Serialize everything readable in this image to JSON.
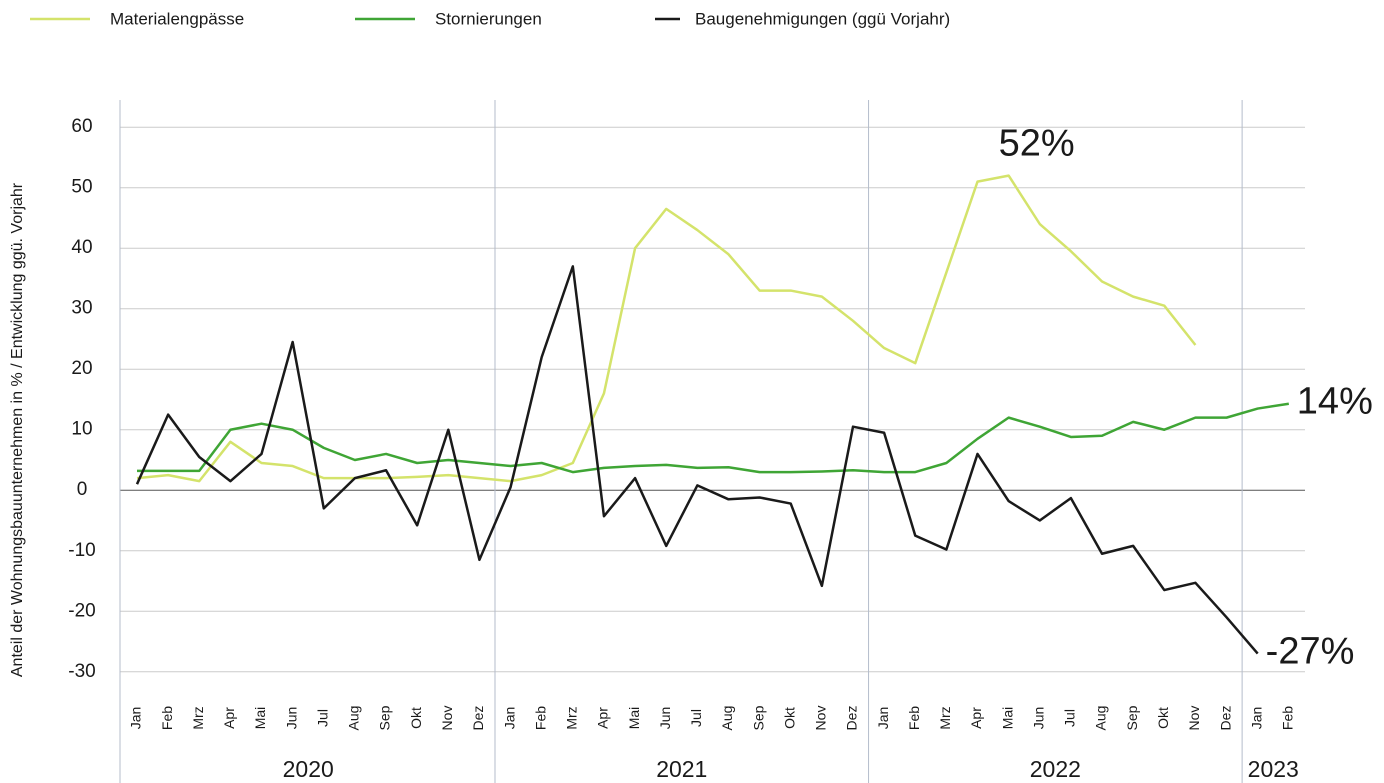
{
  "chart_data": {
    "type": "line",
    "y_label": "Anteil der Wohnungsbauunternehmen in % / Entwicklung ggü. Vorjahr",
    "categories": [
      "Jan",
      "Feb",
      "Mrz",
      "Apr",
      "Mai",
      "Jun",
      "Jul",
      "Aug",
      "Sep",
      "Okt",
      "Nov",
      "Dez",
      "Jan",
      "Feb",
      "Mrz",
      "Apr",
      "Mai",
      "Jun",
      "Jul",
      "Aug",
      "Sep",
      "Okt",
      "Nov",
      "Dez",
      "Jan",
      "Feb",
      "Mrz",
      "Apr",
      "Mai",
      "Jun",
      "Jul",
      "Aug",
      "Sep",
      "Okt",
      "Nov",
      "Dez",
      "Jan",
      "Feb"
    ],
    "years": [
      "2020",
      "2021",
      "2022",
      "2023"
    ],
    "series": [
      {
        "name": "Materialengpässe",
        "color": "#d4e36b",
        "values": [
          2,
          2.5,
          1.5,
          8,
          4.5,
          4,
          2,
          2,
          2,
          2.2,
          2.5,
          2,
          1.5,
          2.5,
          4.5,
          16,
          40,
          46.5,
          43,
          39,
          33,
          33,
          32,
          28,
          23.5,
          21,
          36,
          51,
          52,
          44,
          39.5,
          34.5,
          32,
          30.5,
          24,
          null,
          null,
          null
        ]
      },
      {
        "name": "Stornierungen",
        "color": "#3fa535",
        "values": [
          3.2,
          3.2,
          3.2,
          10,
          11,
          10,
          7,
          5,
          6,
          4.5,
          5,
          4.5,
          4,
          4.5,
          3,
          3.7,
          4,
          4.2,
          3.7,
          3.8,
          3,
          3,
          3.1,
          3.3,
          3,
          3,
          4.5,
          8.5,
          12,
          10.5,
          8.8,
          9,
          11.3,
          10,
          12,
          12,
          13.5,
          14.3
        ]
      },
      {
        "name": "Baugenehmigungen (ggü Vorjahr)",
        "color": "#1a1a1a",
        "values": [
          1,
          12.5,
          5.5,
          1.5,
          6,
          24.5,
          -3,
          2,
          3.3,
          -5.8,
          10,
          -11.5,
          0.5,
          22,
          37,
          -4.3,
          2,
          -9.2,
          0.8,
          -1.5,
          -1.2,
          -2.2,
          -15.8,
          10.5,
          9.5,
          -7.5,
          -9.8,
          6,
          -1.8,
          -5,
          -1.3,
          -10.5,
          -9.2,
          -16.5,
          -15.3,
          -21,
          -27,
          null
        ]
      }
    ],
    "annotations": [
      "52%",
      "14%",
      "-27%"
    ],
    "ylim": [
      -35,
      64
    ],
    "yticks": [
      60,
      50,
      40,
      30,
      20,
      10,
      0,
      -10,
      -20,
      -30
    ],
    "grid": true
  }
}
